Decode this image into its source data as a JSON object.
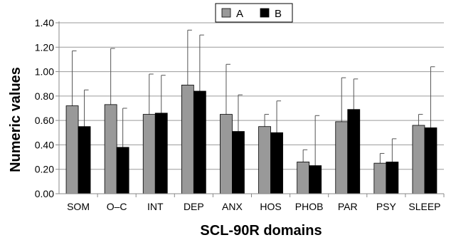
{
  "chart_data": {
    "type": "bar",
    "title": "",
    "xlabel": "SCL-90R domains",
    "ylabel": "Numeric values",
    "ylim": [
      0,
      1.4
    ],
    "ytick_step": 0.2,
    "grid": true,
    "legend_position": "top-center",
    "error_bars": "upper",
    "categories": [
      "SOM",
      "O–C",
      "INT",
      "DEP",
      "ANX",
      "HOS",
      "PHOB",
      "PAR",
      "PSY",
      "SLEEP"
    ],
    "series": [
      {
        "name": "A",
        "color": "#999999",
        "values": [
          0.72,
          0.73,
          0.65,
          0.89,
          0.65,
          0.55,
          0.26,
          0.59,
          0.25,
          0.56
        ],
        "error_upper": [
          1.17,
          1.19,
          0.98,
          1.34,
          1.06,
          0.65,
          0.36,
          0.95,
          0.33,
          0.65
        ]
      },
      {
        "name": "B",
        "color": "#000000",
        "values": [
          0.55,
          0.38,
          0.66,
          0.84,
          0.51,
          0.5,
          0.23,
          0.69,
          0.26,
          0.54
        ],
        "error_upper": [
          0.85,
          0.7,
          0.97,
          1.3,
          0.81,
          0.76,
          0.64,
          0.94,
          0.45,
          1.04
        ]
      }
    ]
  }
}
